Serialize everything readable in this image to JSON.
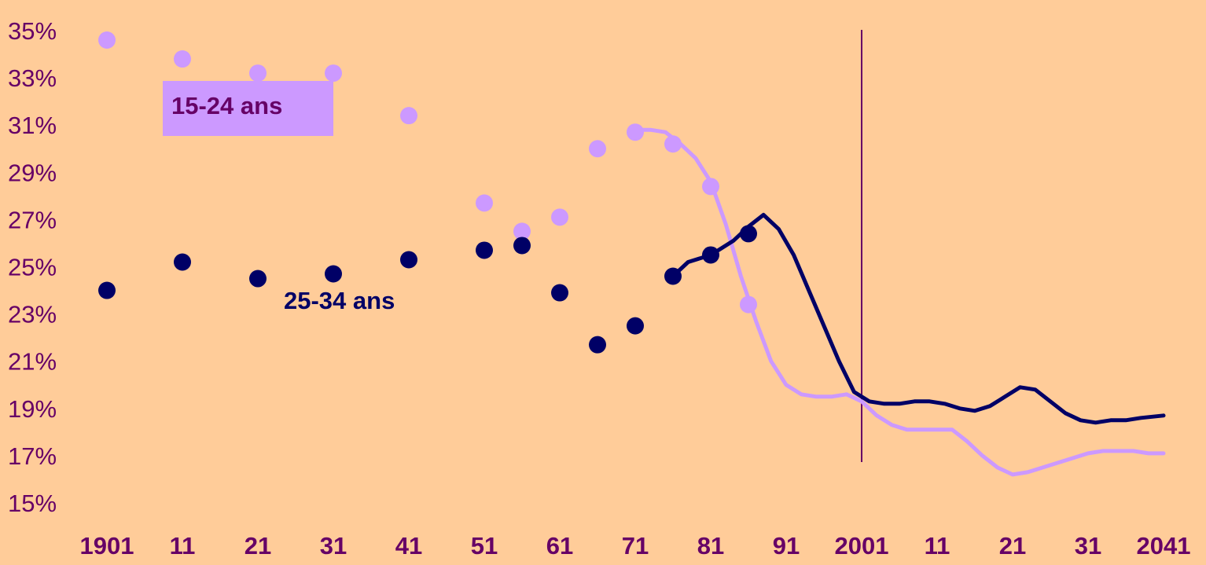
{
  "chart_data": {
    "type": "scatter",
    "x_range": [
      1901,
      2041
    ],
    "ylim": [
      15,
      35
    ],
    "y_tick_labels": [
      "35%",
      "33%",
      "31%",
      "29%",
      "27%",
      "25%",
      "23%",
      "21%",
      "19%",
      "17%",
      "15%"
    ],
    "x_tick_values": [
      1901,
      1911,
      1921,
      1931,
      1941,
      1951,
      1961,
      1971,
      1981,
      1991,
      2001,
      2011,
      2021,
      2031,
      2041
    ],
    "x_tick_labels": [
      "1901",
      "11",
      "21",
      "31",
      "41",
      "51",
      "61",
      "71",
      "81",
      "91",
      "2001",
      "11",
      "21",
      "31",
      "2041"
    ],
    "reference_line_x": 2001,
    "series": [
      {
        "name": "15-24 ans",
        "color": "#CC99FF",
        "points": [
          [
            1901,
            34.6
          ],
          [
            1911,
            33.8
          ],
          [
            1921,
            33.2
          ],
          [
            1931,
            33.2
          ],
          [
            1941,
            31.4
          ],
          [
            1951,
            27.7
          ],
          [
            1956,
            26.5
          ],
          [
            1961,
            27.1
          ],
          [
            1966,
            30.0
          ],
          [
            1971,
            30.7
          ],
          [
            1976,
            30.2
          ],
          [
            1981,
            28.4
          ],
          [
            1986,
            23.4
          ]
        ],
        "line": [
          [
            1971,
            30.8
          ],
          [
            1973,
            30.8
          ],
          [
            1975,
            30.7
          ],
          [
            1977,
            30.2
          ],
          [
            1979,
            29.6
          ],
          [
            1981,
            28.6
          ],
          [
            1983,
            26.8
          ],
          [
            1985,
            24.6
          ],
          [
            1987,
            22.7
          ],
          [
            1989,
            21.0
          ],
          [
            1991,
            20.0
          ],
          [
            1993,
            19.6
          ],
          [
            1995,
            19.5
          ],
          [
            1997,
            19.5
          ],
          [
            1999,
            19.6
          ],
          [
            2001,
            19.3
          ],
          [
            2003,
            18.7
          ],
          [
            2005,
            18.3
          ],
          [
            2007,
            18.1
          ],
          [
            2009,
            18.1
          ],
          [
            2011,
            18.1
          ],
          [
            2013,
            18.1
          ],
          [
            2015,
            17.6
          ],
          [
            2017,
            17.0
          ],
          [
            2019,
            16.5
          ],
          [
            2021,
            16.2
          ],
          [
            2023,
            16.3
          ],
          [
            2025,
            16.5
          ],
          [
            2027,
            16.7
          ],
          [
            2029,
            16.9
          ],
          [
            2031,
            17.1
          ],
          [
            2033,
            17.2
          ],
          [
            2035,
            17.2
          ],
          [
            2037,
            17.2
          ],
          [
            2039,
            17.1
          ],
          [
            2041,
            17.1
          ]
        ]
      },
      {
        "name": "25-34 ans",
        "color": "#000066",
        "points": [
          [
            1901,
            24.0
          ],
          [
            1911,
            25.2
          ],
          [
            1921,
            24.5
          ],
          [
            1931,
            24.7
          ],
          [
            1941,
            25.3
          ],
          [
            1951,
            25.7
          ],
          [
            1956,
            25.9
          ],
          [
            1961,
            23.9
          ],
          [
            1966,
            21.7
          ],
          [
            1971,
            22.5
          ],
          [
            1976,
            24.6
          ],
          [
            1981,
            25.5
          ],
          [
            1986,
            26.4
          ]
        ],
        "line": [
          [
            1976,
            24.6
          ],
          [
            1978,
            25.2
          ],
          [
            1980,
            25.4
          ],
          [
            1982,
            25.7
          ],
          [
            1984,
            26.1
          ],
          [
            1986,
            26.7
          ],
          [
            1988,
            27.2
          ],
          [
            1990,
            26.6
          ],
          [
            1992,
            25.5
          ],
          [
            1994,
            24.0
          ],
          [
            1996,
            22.5
          ],
          [
            1998,
            21.0
          ],
          [
            2000,
            19.7
          ],
          [
            2002,
            19.3
          ],
          [
            2004,
            19.2
          ],
          [
            2006,
            19.2
          ],
          [
            2008,
            19.3
          ],
          [
            2010,
            19.3
          ],
          [
            2012,
            19.2
          ],
          [
            2014,
            19.0
          ],
          [
            2016,
            18.9
          ],
          [
            2018,
            19.1
          ],
          [
            2020,
            19.5
          ],
          [
            2022,
            19.9
          ],
          [
            2024,
            19.8
          ],
          [
            2026,
            19.3
          ],
          [
            2028,
            18.8
          ],
          [
            2030,
            18.5
          ],
          [
            2032,
            18.4
          ],
          [
            2034,
            18.5
          ],
          [
            2036,
            18.5
          ],
          [
            2038,
            18.6
          ],
          [
            2041,
            18.7
          ]
        ]
      }
    ],
    "grid": false,
    "legend": "inline labels"
  },
  "labels": {
    "series1": "15-24 ans",
    "series2": "25-34 ans"
  }
}
